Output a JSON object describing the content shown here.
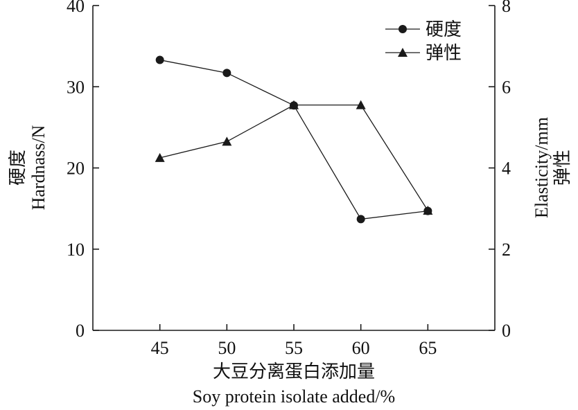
{
  "chart_data": {
    "type": "line",
    "x": [
      45,
      50,
      55,
      60,
      65
    ],
    "xlim": [
      40,
      70
    ],
    "xticks": [
      45,
      50,
      55,
      60,
      65
    ],
    "xlabel_cn": "大豆分离蛋白添加量",
    "xlabel_en": "Soy protein isolate added/%",
    "y_left": {
      "label_cn": "硬度",
      "label_en": "Hardnass/N",
      "ylim": [
        0,
        40
      ],
      "ticks": [
        0,
        10,
        20,
        30,
        40
      ]
    },
    "y_right": {
      "label_cn": "弹性",
      "label_en": "Elasticity/mm",
      "ylim": [
        0,
        8
      ],
      "ticks": [
        0,
        2,
        4,
        6,
        8
      ]
    },
    "series": [
      {
        "name": "硬度",
        "axis": "left",
        "marker": "circle",
        "values": [
          33.3,
          31.7,
          27.7,
          13.7,
          14.7
        ]
      },
      {
        "name": "弹性",
        "axis": "right",
        "marker": "triangle",
        "values": [
          4.25,
          4.65,
          5.55,
          5.55,
          2.95
        ]
      }
    ],
    "legend": {
      "placement": "top-right"
    },
    "grid": false,
    "color": "#1a1a1a"
  }
}
